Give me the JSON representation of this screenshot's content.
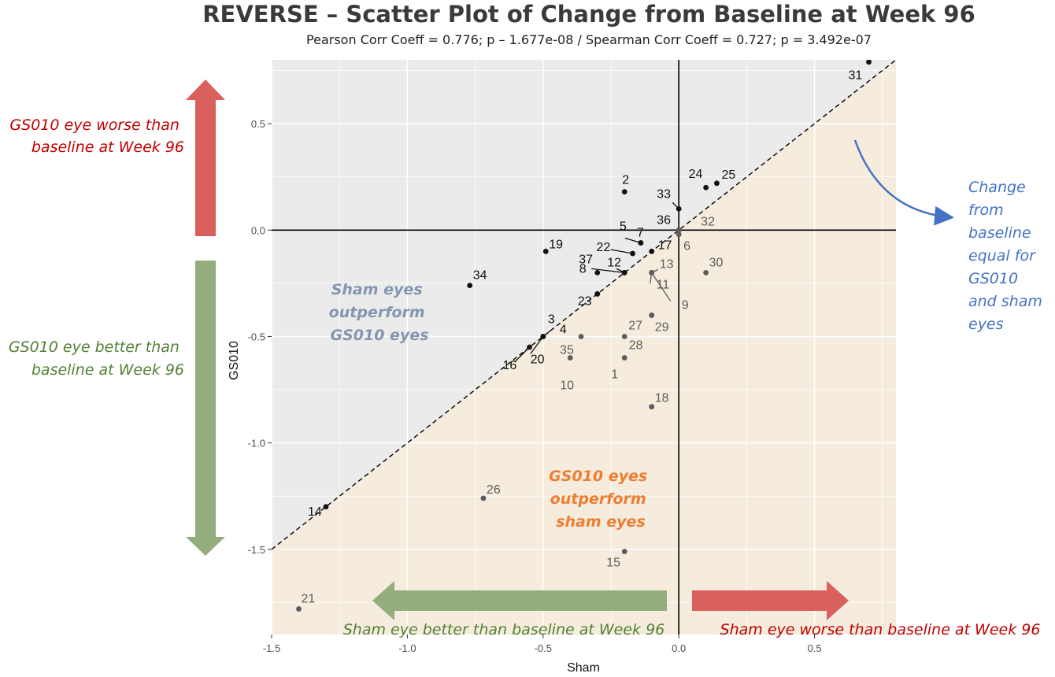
{
  "chart_data": {
    "type": "scatter",
    "title": "REVERSE – Scatter Plot of Change from Baseline at Week 96",
    "subtitle": "Pearson Corr Coeff = 0.776; p – 1.677e-08 / Spearman Corr Coeff = 0.727; p = 3.492e-07",
    "xlabel": "Sham",
    "ylabel": "GS010",
    "xlim": [
      -1.5,
      0.8
    ],
    "ylim": [
      -1.9,
      0.8
    ],
    "x_ticks": [
      "-1.5",
      "-1.0",
      "-0.5",
      "0.0",
      "0.5"
    ],
    "y_ticks": [
      "-1.5",
      "-1.0",
      "-0.5",
      "0.0",
      "0.5"
    ],
    "x_tick_values": [
      -1.5,
      -1.0,
      -0.5,
      0.0,
      0.5
    ],
    "y_tick_values": [
      -1.5,
      -1.0,
      -0.5,
      0.0,
      0.5
    ],
    "grid": true,
    "reference_line": "y = x (dashed)",
    "points": [
      {
        "id": "31",
        "x": 0.7,
        "y": 0.79,
        "group": "above"
      },
      {
        "id": "25",
        "x": 0.14,
        "y": 0.22,
        "group": "above"
      },
      {
        "id": "24",
        "x": 0.1,
        "y": 0.2,
        "group": "above"
      },
      {
        "id": "2",
        "x": -0.2,
        "y": 0.18,
        "group": "above"
      },
      {
        "id": "33",
        "x": 0.0,
        "y": 0.1,
        "group": "above"
      },
      {
        "id": "36",
        "x": 0.0,
        "y": 0.0,
        "group": "above"
      },
      {
        "id": "32",
        "x": 0.0,
        "y": 0.0,
        "group": "below"
      },
      {
        "id": "6",
        "x": 0.0,
        "y": -0.02,
        "group": "below"
      },
      {
        "id": "5",
        "x": -0.14,
        "y": -0.06,
        "group": "above"
      },
      {
        "id": "7",
        "x": -0.14,
        "y": -0.06,
        "group": "above"
      },
      {
        "id": "17",
        "x": -0.1,
        "y": -0.1,
        "group": "above"
      },
      {
        "id": "22",
        "x": -0.17,
        "y": -0.11,
        "group": "above"
      },
      {
        "id": "19",
        "x": -0.49,
        "y": -0.1,
        "group": "above"
      },
      {
        "id": "37",
        "x": -0.2,
        "y": -0.2,
        "group": "above"
      },
      {
        "id": "12",
        "x": -0.2,
        "y": -0.2,
        "group": "above"
      },
      {
        "id": "8",
        "x": -0.3,
        "y": -0.2,
        "group": "above"
      },
      {
        "id": "13",
        "x": -0.1,
        "y": -0.2,
        "group": "below"
      },
      {
        "id": "11",
        "x": -0.1,
        "y": -0.2,
        "group": "below"
      },
      {
        "id": "9",
        "x": -0.1,
        "y": -0.2,
        "group": "below"
      },
      {
        "id": "30",
        "x": 0.1,
        "y": -0.2,
        "group": "below"
      },
      {
        "id": "34",
        "x": -0.77,
        "y": -0.26,
        "group": "above"
      },
      {
        "id": "23",
        "x": -0.3,
        "y": -0.3,
        "group": "above"
      },
      {
        "id": "4",
        "x": -0.3,
        "y": -0.3,
        "group": "above"
      },
      {
        "id": "28",
        "x": -0.1,
        "y": -0.4,
        "group": "below"
      },
      {
        "id": "29",
        "x": -0.1,
        "y": -0.4,
        "group": "below"
      },
      {
        "id": "3",
        "x": -0.5,
        "y": -0.5,
        "group": "above"
      },
      {
        "id": "20",
        "x": -0.5,
        "y": -0.5,
        "group": "above"
      },
      {
        "id": "27",
        "x": -0.2,
        "y": -0.5,
        "group": "below"
      },
      {
        "id": "35",
        "x": -0.36,
        "y": -0.5,
        "group": "below"
      },
      {
        "id": "16",
        "x": -0.55,
        "y": -0.55,
        "group": "above"
      },
      {
        "id": "10",
        "x": -0.4,
        "y": -0.6,
        "group": "below"
      },
      {
        "id": "1",
        "x": -0.2,
        "y": -0.6,
        "group": "below"
      },
      {
        "id": "18",
        "x": -0.1,
        "y": -0.83,
        "group": "below"
      },
      {
        "id": "26",
        "x": -0.72,
        "y": -1.26,
        "group": "below"
      },
      {
        "id": "14",
        "x": -1.3,
        "y": -1.3,
        "group": "above"
      },
      {
        "id": "15",
        "x": -0.2,
        "y": -1.51,
        "group": "below"
      },
      {
        "id": "21",
        "x": -1.4,
        "y": -1.78,
        "group": "below"
      }
    ],
    "annotations": {
      "gs010_worse": "GS010 eye worse than baseline at Week 96",
      "gs010_better": "GS010 eye better than baseline at Week 96",
      "sham_outperform": "Sham eyes outperform GS010 eyes",
      "gs010_outperform": "GS010 eyes outperform sham eyes",
      "equal_change": "Change from baseline equal for GS010 and sham eyes",
      "sham_better": "Sham eye better than baseline at Week 96",
      "sham_worse": "Sham eye worse than baseline at Week 96"
    },
    "colors": {
      "panel_bg": "#ebebeb",
      "below_region": "#f5ecdc",
      "grid": "#ffffff",
      "point_above": "#111111",
      "point_below": "#5c5c5c",
      "red_arrow": "#d9605c",
      "green_arrow": "#93ae7c",
      "red_text": "#c00000",
      "green_text": "#538135",
      "slate_text": "#8496b0",
      "orange_text": "#ed7d31",
      "blue_text": "#4472c4"
    }
  }
}
